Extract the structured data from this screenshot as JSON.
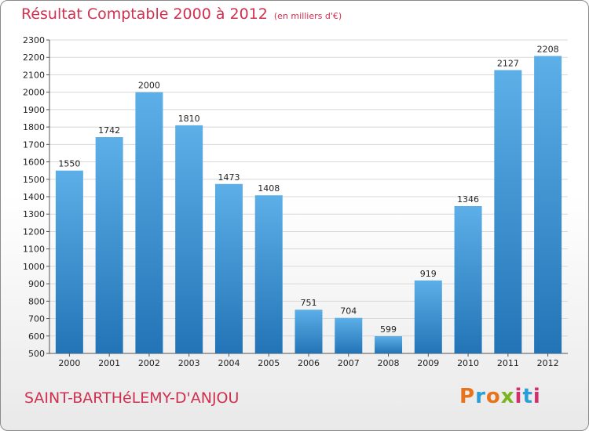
{
  "header": {
    "title": "Résultat Comptable 2000 à 2012",
    "unit": "(en milliers d'€)"
  },
  "footer": {
    "commune": "SAINT-BARTHéLEMY-D'ANJOU",
    "logo": "Proxiti"
  },
  "colors": {
    "title": "#d0304f",
    "bar_top": "#5dafe8",
    "bar_bottom": "#2274b6",
    "logo": [
      "#e8731c",
      "#2b9ed8",
      "#e8731c",
      "#7ab51d",
      "#d62d6e",
      "#2b9ed8",
      "#d62d6e"
    ]
  },
  "chart_data": {
    "type": "bar",
    "title": "Résultat Comptable 2000 à 2012",
    "subtitle": "(en milliers d'€)",
    "xlabel": "",
    "ylabel": "",
    "categories": [
      "2000",
      "2001",
      "2002",
      "2003",
      "2004",
      "2005",
      "2006",
      "2007",
      "2008",
      "2009",
      "2010",
      "2011",
      "2012"
    ],
    "values": [
      1550,
      1742,
      2000,
      1810,
      1473,
      1408,
      751,
      704,
      599,
      919,
      1346,
      2127,
      2208
    ],
    "ylim": [
      500,
      2300
    ],
    "yticks": [
      500,
      600,
      700,
      800,
      900,
      1000,
      1100,
      1200,
      1300,
      1400,
      1500,
      1600,
      1700,
      1800,
      1900,
      2000,
      2100,
      2200,
      2300
    ],
    "grid": true
  }
}
